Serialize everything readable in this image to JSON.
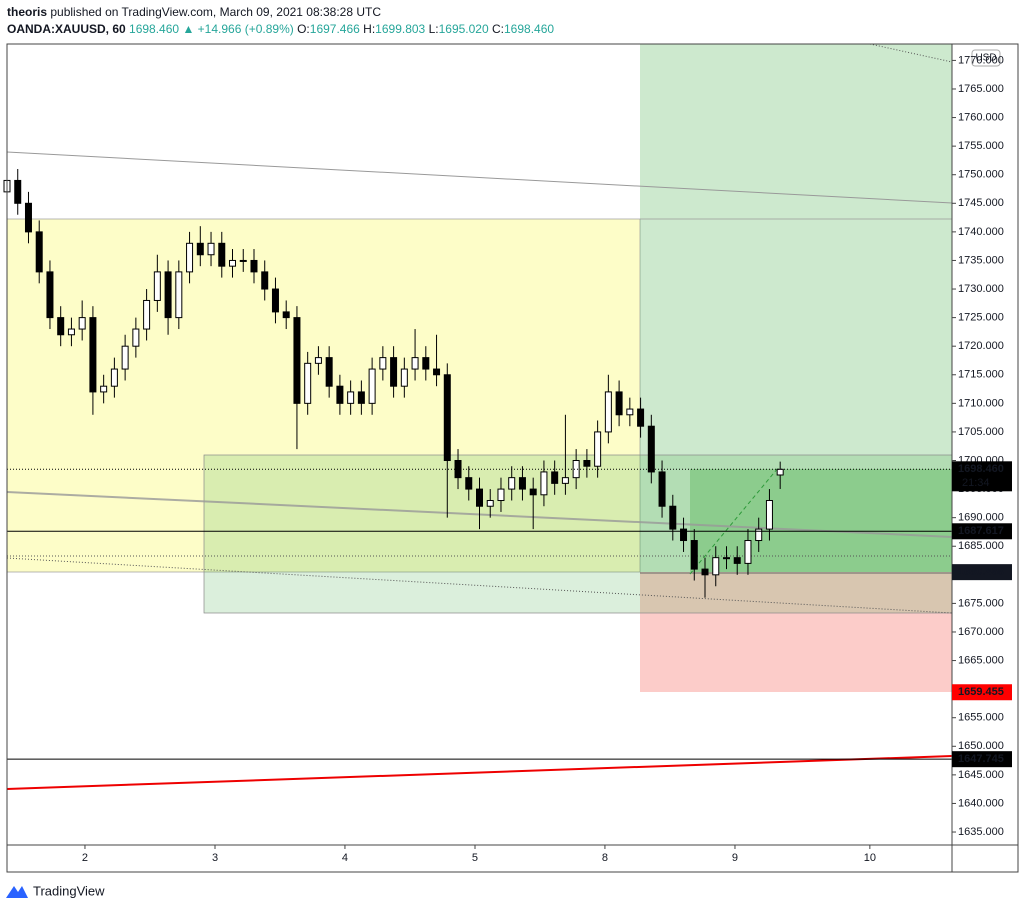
{
  "header": {
    "author": "theoris",
    "published": "published on TradingView.com, March 09, 2021 08:38:28 UTC",
    "symbol": "OANDA:XAUUSD, 60",
    "last": "1698.460",
    "change": "+14.966 (+0.89%)",
    "ohlc": [
      {
        "label": "O:",
        "value": "1697.466"
      },
      {
        "label": "H:",
        "value": "1699.803"
      },
      {
        "label": "L:",
        "value": "1695.020"
      },
      {
        "label": "C:",
        "value": "1698.460"
      }
    ]
  },
  "chart_data": {
    "type": "candlestick",
    "open": [
      1747,
      1749,
      1745,
      1740,
      1733,
      1725,
      1722,
      1723,
      1725,
      1712,
      1713,
      1716,
      1720,
      1723,
      1728,
      1733,
      1725,
      1733,
      1738,
      1736,
      1738,
      1734,
      1735,
      1735,
      1733,
      1730,
      1726,
      1725,
      1710,
      1717,
      1718,
      1713,
      1710,
      1712,
      1710,
      1716,
      1718,
      1713,
      1716,
      1718,
      1716,
      1715,
      1700,
      1697,
      1695,
      1692,
      1693,
      1695,
      1697,
      1695,
      1694,
      1698,
      1696,
      1697,
      1700,
      1699,
      1705,
      1712,
      1708,
      1709,
      1706,
      1698,
      1692,
      1688,
      1686,
      1681,
      1680,
      1683,
      1683,
      1682,
      1686,
      1688,
      1697.466
    ],
    "high": [
      1751,
      1751,
      1747,
      1742,
      1735,
      1727,
      1725,
      1728,
      1727,
      1715,
      1718,
      1722,
      1725,
      1730,
      1736,
      1735,
      1735,
      1740,
      1741,
      1740,
      1740,
      1737,
      1737,
      1737,
      1735,
      1732,
      1728,
      1727,
      1719,
      1720,
      1720,
      1715,
      1714,
      1714,
      1718,
      1720,
      1720,
      1718,
      1723,
      1720,
      1722,
      1717,
      1702,
      1699,
      1697,
      1695,
      1697,
      1699,
      1699,
      1697,
      1700,
      1700,
      1708,
      1702,
      1702,
      1707,
      1715,
      1714,
      1711,
      1711,
      1708,
      1700,
      1694,
      1690,
      1688,
      1683,
      1685,
      1685,
      1685,
      1688,
      1690,
      1695,
      1699.803
    ],
    "low": [
      1745,
      1743,
      1738,
      1731,
      1723,
      1720,
      1720,
      1721,
      1708,
      1710,
      1711,
      1714,
      1718,
      1721,
      1726,
      1722,
      1723,
      1731,
      1734,
      1734,
      1732,
      1732,
      1733,
      1731,
      1728,
      1724,
      1723,
      1702,
      1708,
      1715,
      1711,
      1708,
      1708,
      1708,
      1708,
      1714,
      1711,
      1711,
      1714,
      1714,
      1713,
      1690,
      1695,
      1693,
      1688,
      1690,
      1691,
      1693,
      1693,
      1688,
      1692,
      1694,
      1694,
      1695,
      1697,
      1697,
      1703,
      1706,
      1706,
      1704,
      1696,
      1690,
      1686,
      1684,
      1679,
      1676,
      1678,
      1681,
      1680,
      1680,
      1684,
      1686,
      1695.02
    ],
    "close": [
      1749,
      1745,
      1740,
      1733,
      1725,
      1722,
      1723,
      1725,
      1712,
      1713,
      1716,
      1720,
      1723,
      1728,
      1733,
      1725,
      1733,
      1738,
      1736,
      1738,
      1734,
      1735,
      1735,
      1733,
      1730,
      1726,
      1725,
      1710,
      1717,
      1718,
      1713,
      1710,
      1712,
      1710,
      1716,
      1718,
      1713,
      1716,
      1718,
      1716,
      1715,
      1700,
      1697,
      1695,
      1692,
      1693,
      1695,
      1697,
      1695,
      1694,
      1698,
      1696,
      1697,
      1700,
      1699,
      1705,
      1712,
      1708,
      1709,
      1706,
      1698,
      1692,
      1688,
      1686,
      1681,
      1680,
      1683,
      1683,
      1682,
      1686,
      1688,
      1693,
      1698.46
    ],
    "up_color": "#ffffff",
    "down_color": "#000000",
    "edge_color": "#000000",
    "ylim": [
      1632.73,
      1772.87
    ],
    "yticks": [
      {
        "value": 1635,
        "label": "1635.000"
      },
      {
        "value": 1640,
        "label": "1640.000"
      },
      {
        "value": 1645,
        "label": "1645.000"
      },
      {
        "value": 1650,
        "label": "1650.000"
      },
      {
        "value": 1655,
        "label": "1655.000"
      },
      {
        "value": 1660,
        "label": "1660.000"
      },
      {
        "value": 1665,
        "label": "1665.000"
      },
      {
        "value": 1670,
        "label": "1670.000"
      },
      {
        "value": 1675,
        "label": "1675.000"
      },
      {
        "value": 1680,
        "label": "1680.000"
      },
      {
        "value": 1685,
        "label": "1685.000"
      },
      {
        "value": 1690,
        "label": "1690.000"
      },
      {
        "value": 1695,
        "label": "1695.000"
      },
      {
        "value": 1700,
        "label": "1700.000"
      },
      {
        "value": 1705,
        "label": "1705.000"
      },
      {
        "value": 1710,
        "label": "1710.000"
      },
      {
        "value": 1715,
        "label": "1715.000"
      },
      {
        "value": 1720,
        "label": "1720.000"
      },
      {
        "value": 1725,
        "label": "1725.000"
      },
      {
        "value": 1730,
        "label": "1730.000"
      },
      {
        "value": 1735,
        "label": "1735.000"
      },
      {
        "value": 1740,
        "label": "1740.000"
      },
      {
        "value": 1745,
        "label": "1745.000"
      },
      {
        "value": 1750,
        "label": "1750.000"
      },
      {
        "value": 1755,
        "label": "1755.000"
      },
      {
        "value": 1760,
        "label": "1760.000"
      },
      {
        "value": 1765,
        "label": "1765.000"
      },
      {
        "value": 1770,
        "label": "1770.000"
      }
    ],
    "xlim": [
      0,
      88
    ],
    "xticks": [
      {
        "value": 7.26,
        "label": "2"
      },
      {
        "value": 19.37,
        "label": "3"
      },
      {
        "value": 31.47,
        "label": "4"
      },
      {
        "value": 43.58,
        "label": "5"
      },
      {
        "value": 55.68,
        "label": "8"
      },
      {
        "value": 67.79,
        "label": "9"
      },
      {
        "value": 80.35,
        "label": "10"
      }
    ],
    "currency": "USD",
    "price_labels": [
      {
        "value": 1698.46,
        "label": "1698.460",
        "sub": "21:34",
        "color": "#000000",
        "line": "dotted"
      },
      {
        "value": 1687.617,
        "label": "1687.617",
        "color": "#000000",
        "line": "solid"
      },
      {
        "value": 1680.468,
        "label": "1680.468",
        "color": "#131722",
        "line": "none"
      },
      {
        "value": 1659.455,
        "label": "1659.455",
        "color": "#ff0000",
        "line": "none"
      },
      {
        "value": 1647.745,
        "label": "1647.745",
        "color": "#000000",
        "line": "solid"
      }
    ]
  },
  "footer": {
    "brand": "TradingView"
  }
}
